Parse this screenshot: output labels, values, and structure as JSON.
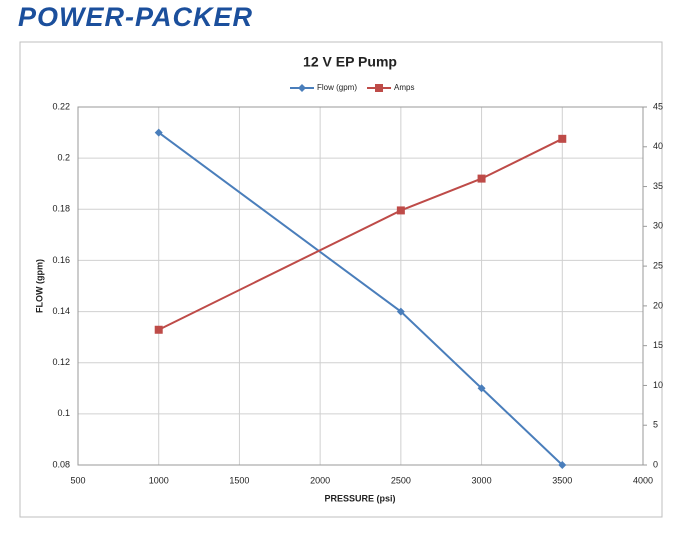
{
  "logo": "POWER-PACKER",
  "chart_data": {
    "type": "line",
    "title": "12 V EP Pump",
    "x_label": "PRESSURE (psi)",
    "y_label": "FLOW (gpm)",
    "x": [
      1000,
      2500,
      3000,
      3500
    ],
    "series": [
      {
        "name": "Flow (gpm)",
        "color": "#4a7ebb",
        "marker": "diamond",
        "values": [
          0.21,
          0.14,
          0.11,
          0.08
        ]
      },
      {
        "name": "Amps",
        "color": "#be4b48",
        "marker": "square",
        "axis": "y2",
        "values": [
          17,
          32,
          36,
          41
        ]
      }
    ],
    "xlim": [
      500,
      4000
    ],
    "xticks": [
      500,
      1000,
      1500,
      2000,
      2500,
      3000,
      3500,
      4000
    ],
    "ylim": [
      0.08,
      0.22
    ],
    "yticks": [
      0.08,
      0.1,
      0.12,
      0.14,
      0.16,
      0.18,
      0.2,
      0.22
    ],
    "y2lim": [
      0,
      45
    ],
    "y2ticks": [
      0,
      5,
      10,
      15,
      20,
      25,
      30,
      35,
      40,
      45
    ],
    "grid": true,
    "legend": "top"
  }
}
